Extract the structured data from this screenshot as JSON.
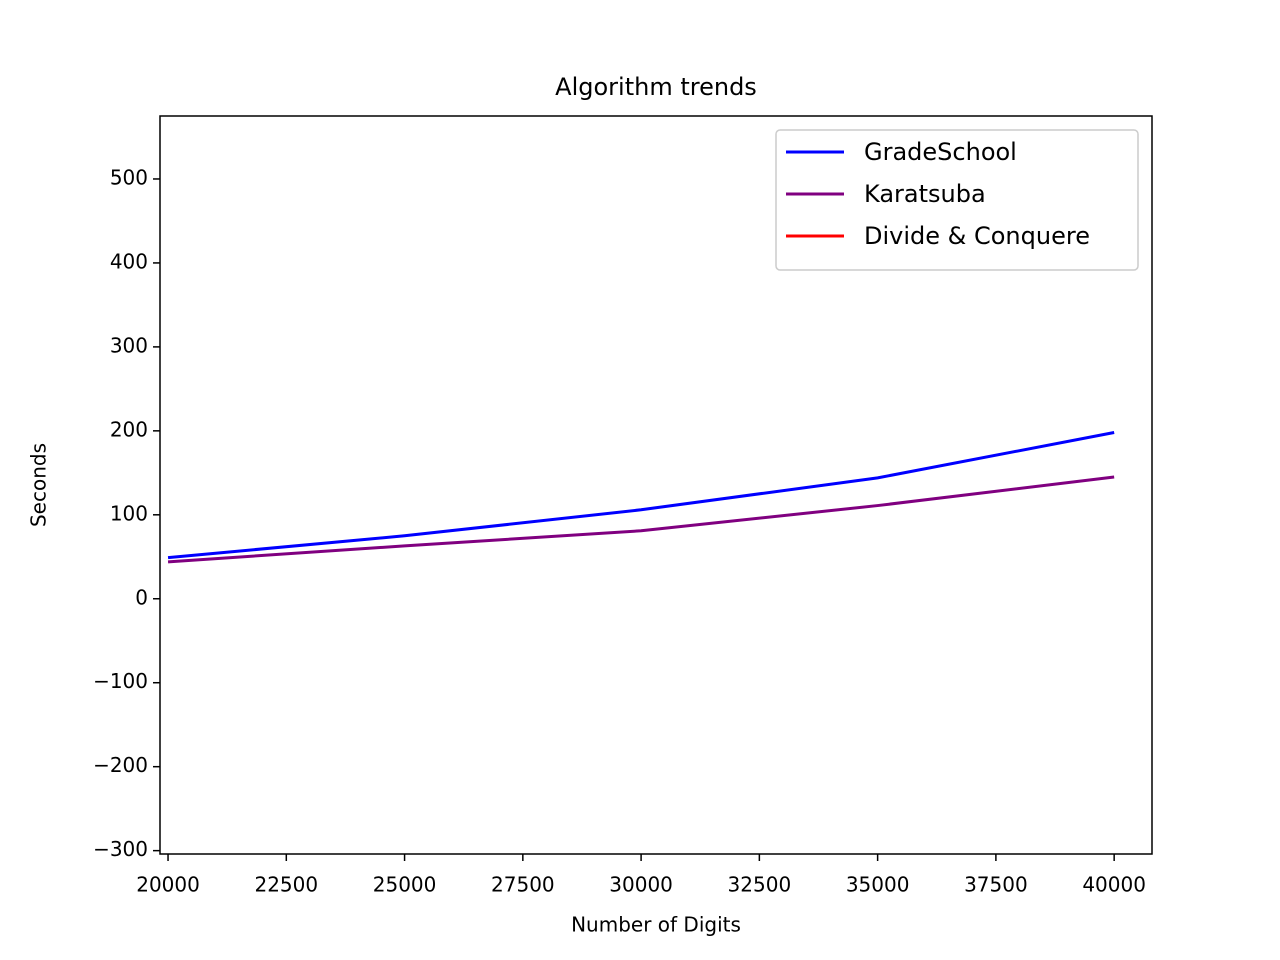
{
  "chart_data": {
    "type": "line",
    "title": "Algorithm trends",
    "xlabel": "Number of Digits",
    "ylabel": "Seconds",
    "x": [
      20000,
      25000,
      30000,
      35000,
      40000
    ],
    "series": [
      {
        "name": "GradeSchool",
        "color": "#0000ff",
        "values": [
          49,
          75,
          106,
          144,
          198
        ]
      },
      {
        "name": "Karatsuba",
        "color": "#800080",
        "values": [
          44,
          63,
          81,
          111,
          145
        ]
      },
      {
        "name": "Divide & Conquere",
        "color": "#ff0000",
        "values": [
          null,
          null,
          null,
          null,
          null
        ]
      }
    ],
    "xlim": [
      19830,
      40800
    ],
    "xticks": [
      20000,
      22500,
      25000,
      27500,
      30000,
      32500,
      35000,
      37500,
      40000
    ],
    "ylim": [
      -304,
      575
    ],
    "yticks": [
      {
        "value": -300,
        "label": "−300"
      },
      {
        "value": -200,
        "label": "−200"
      },
      {
        "value": -100,
        "label": "−100"
      },
      0,
      100,
      200,
      300,
      400,
      500
    ],
    "legend": "upper right",
    "grid": false
  }
}
